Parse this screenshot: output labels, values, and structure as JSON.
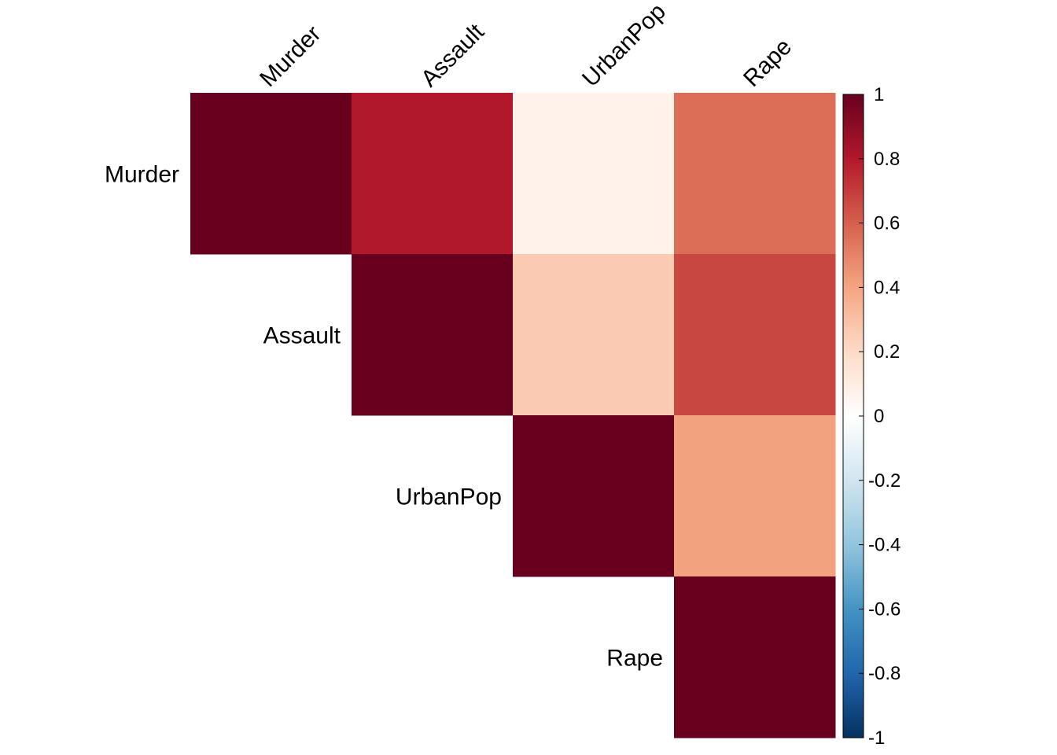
{
  "chart_data": {
    "type": "heatmap",
    "subtype": "correlation-matrix-upper",
    "variables": [
      "Murder",
      "Assault",
      "UrbanPop",
      "Rape"
    ],
    "matrix": [
      [
        1.0,
        0.8,
        0.07,
        0.56
      ],
      [
        0.8,
        1.0,
        0.26,
        0.67
      ],
      [
        0.07,
        0.26,
        1.0,
        0.41
      ],
      [
        0.56,
        0.67,
        0.41,
        1.0
      ]
    ],
    "show": "upper",
    "colorbar": {
      "min": -1,
      "max": 1,
      "ticks": [
        "1",
        "0.8",
        "0.6",
        "0.4",
        "0.2",
        "0",
        "-0.2",
        "-0.4",
        "-0.6",
        "-0.8",
        "-1"
      ],
      "colors": [
        "#67001F",
        "#B2182B",
        "#D6604D",
        "#F4A582",
        "#FDDBC7",
        "#FFFFFF",
        "#D1E5F0",
        "#92C5DE",
        "#4393C3",
        "#2166AC",
        "#053061"
      ]
    },
    "grid": false
  }
}
